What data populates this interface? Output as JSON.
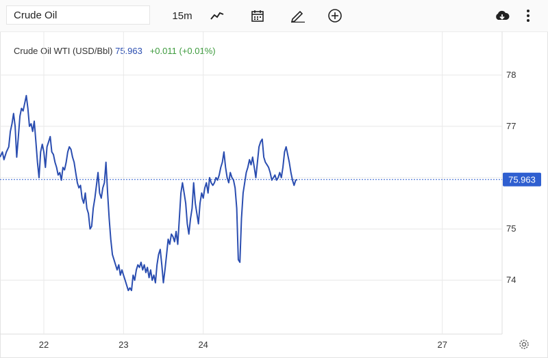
{
  "toolbar": {
    "symbol_value": "Crude Oil",
    "interval_label": "15m",
    "icons": [
      "chart-type-icon",
      "calendar-icon",
      "draw-icon",
      "add-indicator-icon",
      "download-icon",
      "more-icon",
      "settings-icon"
    ]
  },
  "legend": {
    "name": "Crude Oil WTI (USD/Bbl)",
    "price": "75.963",
    "change": "+0.011",
    "change_pct": "(+0.01%)"
  },
  "colors": {
    "line": "#2a4db0",
    "grid": "#e8e8e8",
    "price_tag": "#2f5fd0",
    "change_up": "#3c9a3c"
  },
  "chart_data": {
    "type": "line",
    "title": "",
    "xlabel": "",
    "ylabel": "",
    "ylim": [
      72.95,
      78.85
    ],
    "yticks": [
      74,
      75,
      76,
      77,
      78
    ],
    "ytick_labels": [
      "74",
      "75",
      "",
      "77",
      "78"
    ],
    "xticks": [
      {
        "label": "22",
        "x": 22
      },
      {
        "label": "23",
        "x": 23
      },
      {
        "label": "24",
        "x": 24
      },
      {
        "label": "27",
        "x": 27
      }
    ],
    "xlim": [
      21.45,
      27.75
    ],
    "grid": true,
    "last_price": 75.963,
    "last_price_label": "75.963",
    "series": [
      {
        "values": [
          [
            21.45,
            76.4
          ],
          [
            21.48,
            76.5
          ],
          [
            21.5,
            76.35
          ],
          [
            21.53,
            76.5
          ],
          [
            21.56,
            76.6
          ],
          [
            21.58,
            76.9
          ],
          [
            21.6,
            77.05
          ],
          [
            21.62,
            77.25
          ],
          [
            21.64,
            77.0
          ],
          [
            21.66,
            76.4
          ],
          [
            21.68,
            76.8
          ],
          [
            21.7,
            77.2
          ],
          [
            21.72,
            77.35
          ],
          [
            21.74,
            77.3
          ],
          [
            21.76,
            77.45
          ],
          [
            21.78,
            77.6
          ],
          [
            21.8,
            77.35
          ],
          [
            21.82,
            77.0
          ],
          [
            21.84,
            77.05
          ],
          [
            21.86,
            76.9
          ],
          [
            21.88,
            77.1
          ],
          [
            21.9,
            76.7
          ],
          [
            21.92,
            76.3
          ],
          [
            21.94,
            76.0
          ],
          [
            21.96,
            76.5
          ],
          [
            21.98,
            76.65
          ],
          [
            22.0,
            76.5
          ],
          [
            22.02,
            76.2
          ],
          [
            22.04,
            76.6
          ],
          [
            22.06,
            76.7
          ],
          [
            22.08,
            76.8
          ],
          [
            22.1,
            76.5
          ],
          [
            22.12,
            76.45
          ],
          [
            22.14,
            76.3
          ],
          [
            22.16,
            76.2
          ],
          [
            22.18,
            76.05
          ],
          [
            22.2,
            76.1
          ],
          [
            22.22,
            75.95
          ],
          [
            22.24,
            76.2
          ],
          [
            22.26,
            76.15
          ],
          [
            22.28,
            76.3
          ],
          [
            22.3,
            76.5
          ],
          [
            22.32,
            76.6
          ],
          [
            22.34,
            76.55
          ],
          [
            22.36,
            76.4
          ],
          [
            22.38,
            76.3
          ],
          [
            22.4,
            76.1
          ],
          [
            22.42,
            75.9
          ],
          [
            22.44,
            75.8
          ],
          [
            22.46,
            75.85
          ],
          [
            22.48,
            75.6
          ],
          [
            22.5,
            75.5
          ],
          [
            22.52,
            75.7
          ],
          [
            22.54,
            75.4
          ],
          [
            22.56,
            75.3
          ],
          [
            22.58,
            75.0
          ],
          [
            22.6,
            75.05
          ],
          [
            22.62,
            75.4
          ],
          [
            22.64,
            75.6
          ],
          [
            22.66,
            75.85
          ],
          [
            22.68,
            76.1
          ],
          [
            22.7,
            75.7
          ],
          [
            22.72,
            75.6
          ],
          [
            22.74,
            75.8
          ],
          [
            22.76,
            75.9
          ],
          [
            22.78,
            76.3
          ],
          [
            22.8,
            75.7
          ],
          [
            22.82,
            75.2
          ],
          [
            22.84,
            74.8
          ],
          [
            22.86,
            74.5
          ],
          [
            22.88,
            74.4
          ],
          [
            22.9,
            74.3
          ],
          [
            22.92,
            74.2
          ],
          [
            22.94,
            74.3
          ],
          [
            22.96,
            74.1
          ],
          [
            22.98,
            74.2
          ],
          [
            23.0,
            74.1
          ],
          [
            23.02,
            74.0
          ],
          [
            23.04,
            73.9
          ],
          [
            23.06,
            73.8
          ],
          [
            23.08,
            73.85
          ],
          [
            23.1,
            73.8
          ],
          [
            23.12,
            74.1
          ],
          [
            23.14,
            74.0
          ],
          [
            23.16,
            74.2
          ],
          [
            23.18,
            74.3
          ],
          [
            23.2,
            74.25
          ],
          [
            23.22,
            74.35
          ],
          [
            23.24,
            74.2
          ],
          [
            23.26,
            74.3
          ],
          [
            23.28,
            74.15
          ],
          [
            23.3,
            74.25
          ],
          [
            23.32,
            74.05
          ],
          [
            23.34,
            74.2
          ],
          [
            23.36,
            74.0
          ],
          [
            23.38,
            74.1
          ],
          [
            23.4,
            73.95
          ],
          [
            23.42,
            74.3
          ],
          [
            23.44,
            74.5
          ],
          [
            23.46,
            74.6
          ],
          [
            23.48,
            74.3
          ],
          [
            23.5,
            73.95
          ],
          [
            23.52,
            74.2
          ],
          [
            23.54,
            74.5
          ],
          [
            23.56,
            74.8
          ],
          [
            23.58,
            74.7
          ],
          [
            23.6,
            74.9
          ],
          [
            23.62,
            74.85
          ],
          [
            23.64,
            74.75
          ],
          [
            23.66,
            74.95
          ],
          [
            23.68,
            74.7
          ],
          [
            23.7,
            75.2
          ],
          [
            23.72,
            75.7
          ],
          [
            23.74,
            75.9
          ],
          [
            23.76,
            75.7
          ],
          [
            23.78,
            75.5
          ],
          [
            23.8,
            75.1
          ],
          [
            23.82,
            74.9
          ],
          [
            23.84,
            75.2
          ],
          [
            23.86,
            75.4
          ],
          [
            23.88,
            75.9
          ],
          [
            23.9,
            75.5
          ],
          [
            23.92,
            75.3
          ],
          [
            23.94,
            75.1
          ],
          [
            23.96,
            75.5
          ],
          [
            23.98,
            75.7
          ],
          [
            24.0,
            75.6
          ],
          [
            24.02,
            75.8
          ],
          [
            24.04,
            75.9
          ],
          [
            24.06,
            75.7
          ],
          [
            24.08,
            76.0
          ],
          [
            24.1,
            75.9
          ],
          [
            24.12,
            75.85
          ],
          [
            24.14,
            75.9
          ],
          [
            24.16,
            76.0
          ],
          [
            24.18,
            75.95
          ],
          [
            24.2,
            76.05
          ],
          [
            24.22,
            76.2
          ],
          [
            24.24,
            76.3
          ],
          [
            24.26,
            76.5
          ],
          [
            24.28,
            76.2
          ],
          [
            24.3,
            76.0
          ],
          [
            24.32,
            75.9
          ],
          [
            24.34,
            76.1
          ],
          [
            24.36,
            76.0
          ],
          [
            24.38,
            75.95
          ],
          [
            24.4,
            75.8
          ],
          [
            24.42,
            75.4
          ],
          [
            24.44,
            74.4
          ],
          [
            24.46,
            74.35
          ],
          [
            24.48,
            75.2
          ],
          [
            24.5,
            75.7
          ],
          [
            24.52,
            75.9
          ],
          [
            24.54,
            76.1
          ],
          [
            24.56,
            76.2
          ],
          [
            24.58,
            76.35
          ],
          [
            24.6,
            76.25
          ],
          [
            24.62,
            76.4
          ],
          [
            24.64,
            76.2
          ],
          [
            24.66,
            76.0
          ],
          [
            24.68,
            76.3
          ],
          [
            24.7,
            76.6
          ],
          [
            24.72,
            76.7
          ],
          [
            24.74,
            76.75
          ],
          [
            24.76,
            76.4
          ],
          [
            24.78,
            76.3
          ],
          [
            24.8,
            76.25
          ],
          [
            24.82,
            76.2
          ],
          [
            24.84,
            76.1
          ],
          [
            24.86,
            75.95
          ],
          [
            24.88,
            76.0
          ],
          [
            24.9,
            76.05
          ],
          [
            24.92,
            75.95
          ],
          [
            24.94,
            76.0
          ],
          [
            24.96,
            76.1
          ],
          [
            24.98,
            76.0
          ],
          [
            25.0,
            76.2
          ],
          [
            25.02,
            76.5
          ],
          [
            25.04,
            76.6
          ],
          [
            25.06,
            76.45
          ],
          [
            25.08,
            76.3
          ],
          [
            25.1,
            76.1
          ],
          [
            25.12,
            75.95
          ],
          [
            25.14,
            75.85
          ],
          [
            25.16,
            75.95
          ],
          [
            25.18,
            75.963
          ]
        ]
      }
    ]
  }
}
